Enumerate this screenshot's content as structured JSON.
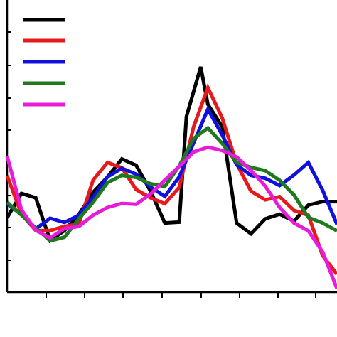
{
  "chart_data": {
    "type": "line",
    "title": "",
    "xlabel": "",
    "ylabel": "",
    "xlim": [
      0,
      46
    ],
    "ylim": [
      0,
      100
    ],
    "grid": false,
    "legend": {
      "placement": "top-left",
      "entries": [
        "",
        "",
        "",
        "",
        ""
      ]
    },
    "series": [
      {
        "color": "#000000",
        "x": [
          0,
          2,
          4,
          6,
          8,
          10,
          12,
          14,
          16,
          18,
          20,
          22,
          24,
          25,
          27,
          28,
          30,
          32,
          34,
          36,
          38,
          40,
          42,
          44,
          46
        ],
        "y": [
          25.5,
          33.8,
          32.3,
          17.7,
          21.1,
          26.6,
          34.2,
          39.4,
          45.6,
          43.4,
          34.6,
          23.7,
          24.0,
          60.1,
          77.1,
          64.3,
          56.6,
          23.7,
          20.0,
          25.1,
          26.7,
          24.3,
          29.8,
          31.0,
          31.0
        ]
      },
      {
        "color": "#e6191c",
        "x": [
          0,
          2,
          4,
          6,
          8,
          10,
          12,
          14,
          16,
          18,
          20,
          22,
          24,
          26,
          28,
          30,
          32,
          34,
          36,
          38,
          40,
          42,
          44,
          46
        ],
        "y": [
          39.9,
          26.7,
          21.1,
          21.1,
          22.5,
          23.3,
          38.4,
          44.4,
          42.6,
          35.1,
          32.3,
          30.3,
          35.9,
          56.6,
          70.0,
          59.6,
          44.0,
          34.6,
          31.6,
          32.7,
          28.0,
          26.3,
          12.5,
          6.1
        ]
      },
      {
        "color": "#1111dd",
        "x": [
          0,
          2,
          4,
          6,
          8,
          10,
          12,
          14,
          16,
          18,
          20,
          22,
          24,
          26,
          28,
          30,
          32,
          34,
          36,
          38,
          40,
          42,
          44,
          46
        ],
        "y": [
          30.3,
          26.6,
          21.7,
          25.3,
          23.9,
          26.3,
          32.5,
          39.5,
          42.4,
          40.4,
          36.0,
          32.8,
          39.5,
          51.1,
          62.6,
          53.8,
          43.6,
          40.0,
          39.0,
          36.5,
          40.1,
          44.4,
          34.9,
          23.2
        ]
      },
      {
        "color": "#1f7a1f",
        "x": [
          0,
          2,
          4,
          6,
          8,
          10,
          12,
          14,
          16,
          18,
          20,
          22,
          24,
          26,
          28,
          30,
          32,
          34,
          36,
          38,
          40,
          42,
          44,
          46
        ],
        "y": [
          30.8,
          26.4,
          22.0,
          17.6,
          18.8,
          25.1,
          30.8,
          37.5,
          40.0,
          39.3,
          37.1,
          36.2,
          43.2,
          52.6,
          56.2,
          50.9,
          44.4,
          42.7,
          41.6,
          38.3,
          33.3,
          25.6,
          23.7,
          21.0
        ]
      },
      {
        "color": "#e81cd8",
        "x": [
          0,
          2,
          4,
          6,
          8,
          10,
          12,
          14,
          16,
          18,
          20,
          22,
          24,
          26,
          28,
          30,
          32,
          34,
          36,
          38,
          40,
          42,
          44,
          46
        ],
        "y": [
          46.6,
          28.2,
          21.2,
          18.6,
          21.8,
          22.5,
          26.4,
          29.0,
          30.4,
          30.1,
          33.6,
          38.4,
          43.1,
          48.0,
          49.6,
          48.5,
          46.3,
          41.7,
          36.3,
          29.0,
          23.7,
          21.0,
          13.8,
          1.2
        ]
      }
    ]
  }
}
